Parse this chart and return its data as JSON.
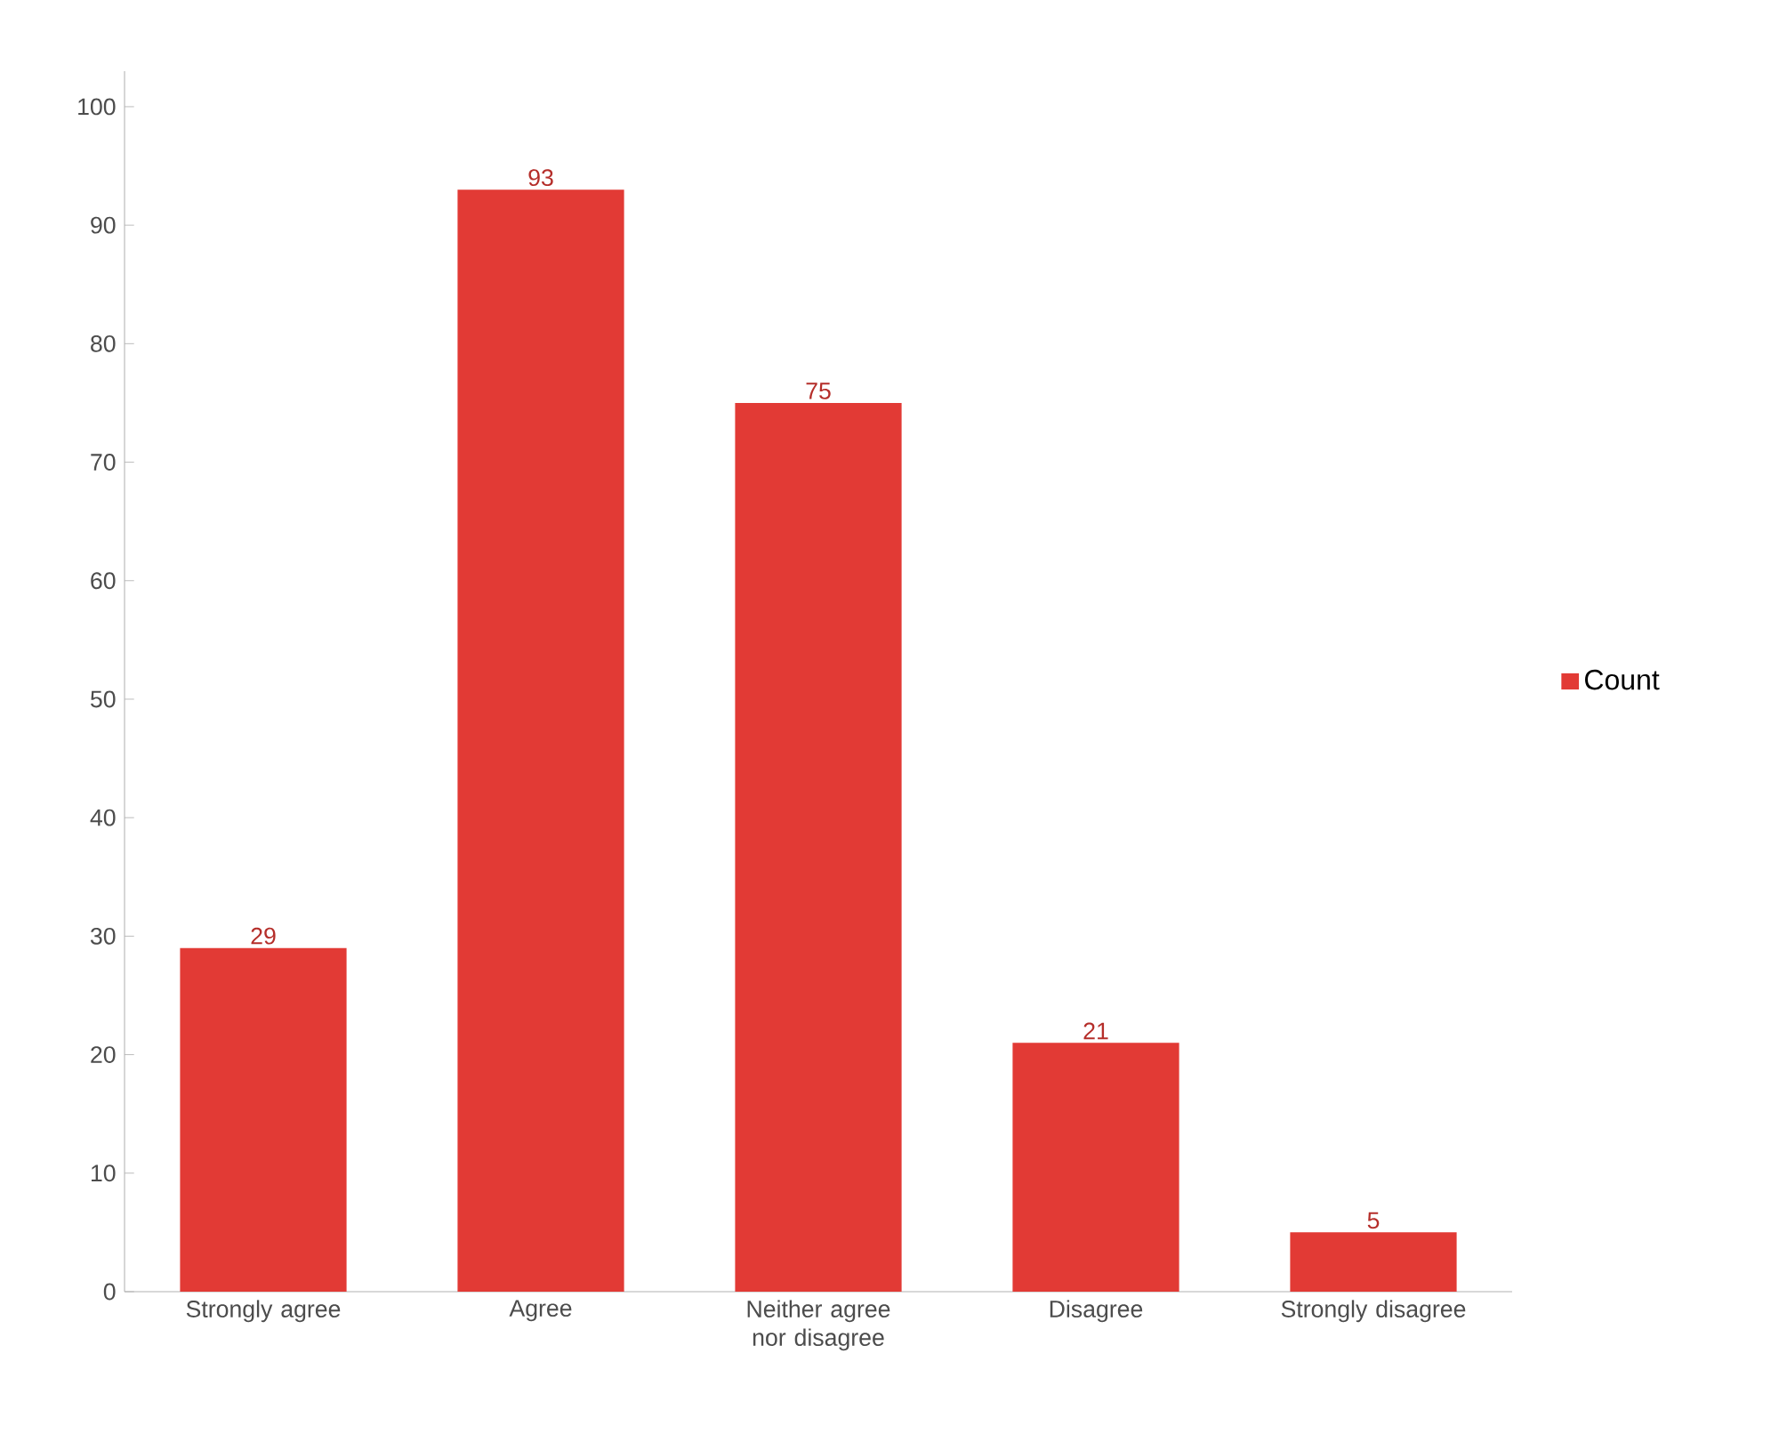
{
  "chart_data": {
    "type": "bar",
    "categories": [
      "Strongly agree",
      "Agree",
      "Neither agree nor disagree",
      "Disagree",
      "Strongly disagree"
    ],
    "series": [
      {
        "name": "Count",
        "color": "#e23a35",
        "values": [
          29,
          93,
          75,
          21,
          5
        ]
      }
    ],
    "ylim": [
      0,
      103
    ],
    "yticks": [
      0,
      10,
      20,
      30,
      40,
      50,
      60,
      70,
      80,
      90,
      100
    ],
    "data_labels": true,
    "legend": "right"
  }
}
